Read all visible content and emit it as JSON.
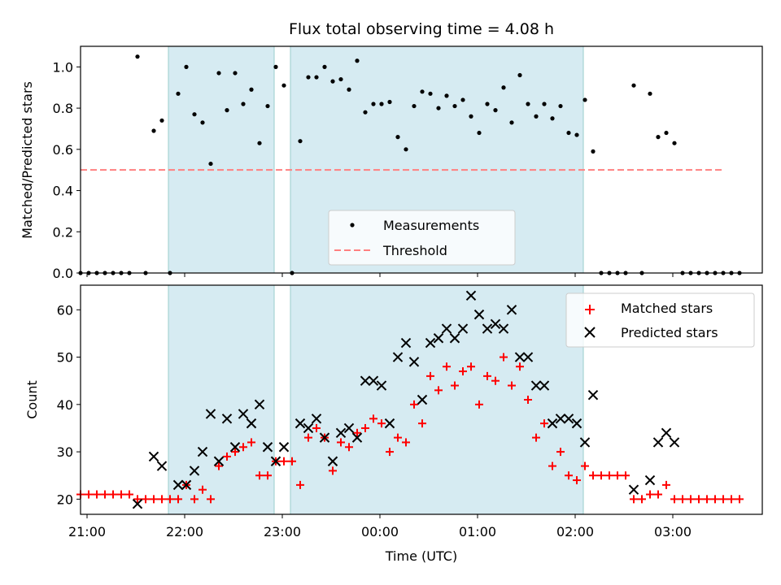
{
  "chart_data": [
    {
      "type": "scatter",
      "title": "Flux total observing time = 4.08 h",
      "ylabel": "Matched/Predicted stars",
      "xlabel": "",
      "ylim": [
        0,
        1.1
      ],
      "xlim": [
        "20:56",
        "03:55"
      ],
      "yticks": [
        0.0,
        0.2,
        0.4,
        0.6,
        0.8,
        1.0
      ],
      "ytick_labels": [
        "0.0",
        "0.2",
        "0.4",
        "0.6",
        "0.8",
        "1.0"
      ],
      "observing_windows": [
        [
          "21:50",
          "22:55"
        ],
        [
          "23:05",
          "02:05"
        ]
      ],
      "threshold": {
        "value": 0.5,
        "x_range": [
          "20:56",
          "03:30"
        ],
        "color": "#ff8080"
      },
      "legend": {
        "position": "lower center",
        "entries": [
          "Measurements",
          "Threshold"
        ]
      },
      "series": [
        {
          "name": "Measurements",
          "color": "#000000",
          "marker": "dot",
          "points": [
            [
              "20:56",
              0.0
            ],
            [
              "21:01",
              0.0
            ],
            [
              "21:06",
              0.0
            ],
            [
              "21:11",
              0.0
            ],
            [
              "21:16",
              0.0
            ],
            [
              "21:21",
              0.0
            ],
            [
              "21:26",
              0.0
            ],
            [
              "21:31",
              1.05
            ],
            [
              "21:36",
              0.0
            ],
            [
              "21:41",
              0.69
            ],
            [
              "21:46",
              0.74
            ],
            [
              "21:51",
              0.0
            ],
            [
              "21:56",
              0.87
            ],
            [
              "22:01",
              1.0
            ],
            [
              "22:06",
              0.77
            ],
            [
              "22:11",
              0.73
            ],
            [
              "22:16",
              0.53
            ],
            [
              "22:21",
              0.97
            ],
            [
              "22:26",
              0.79
            ],
            [
              "22:31",
              0.97
            ],
            [
              "22:36",
              0.82
            ],
            [
              "22:41",
              0.89
            ],
            [
              "22:46",
              0.63
            ],
            [
              "22:51",
              0.81
            ],
            [
              "22:56",
              1.0
            ],
            [
              "23:01",
              0.91
            ],
            [
              "23:06",
              0.0
            ],
            [
              "23:11",
              0.64
            ],
            [
              "23:16",
              0.95
            ],
            [
              "23:21",
              0.95
            ],
            [
              "23:26",
              1.0
            ],
            [
              "23:31",
              0.93
            ],
            [
              "23:36",
              0.94
            ],
            [
              "23:41",
              0.89
            ],
            [
              "23:46",
              1.03
            ],
            [
              "23:51",
              0.78
            ],
            [
              "23:56",
              0.82
            ],
            [
              "00:01",
              0.82
            ],
            [
              "00:06",
              0.83
            ],
            [
              "00:11",
              0.66
            ],
            [
              "00:16",
              0.6
            ],
            [
              "00:21",
              0.81
            ],
            [
              "00:26",
              0.88
            ],
            [
              "00:31",
              0.87
            ],
            [
              "00:36",
              0.8
            ],
            [
              "00:41",
              0.86
            ],
            [
              "00:46",
              0.81
            ],
            [
              "00:51",
              0.84
            ],
            [
              "00:56",
              0.76
            ],
            [
              "01:01",
              0.68
            ],
            [
              "01:06",
              0.82
            ],
            [
              "01:11",
              0.79
            ],
            [
              "01:16",
              0.9
            ],
            [
              "01:21",
              0.73
            ],
            [
              "01:26",
              0.96
            ],
            [
              "01:31",
              0.82
            ],
            [
              "01:36",
              0.76
            ],
            [
              "01:41",
              0.82
            ],
            [
              "01:46",
              0.75
            ],
            [
              "01:51",
              0.81
            ],
            [
              "01:56",
              0.68
            ],
            [
              "02:01",
              0.67
            ],
            [
              "02:06",
              0.84
            ],
            [
              "02:11",
              0.59
            ],
            [
              "02:16",
              0.0
            ],
            [
              "02:21",
              0.0
            ],
            [
              "02:26",
              0.0
            ],
            [
              "02:31",
              0.0
            ],
            [
              "02:36",
              0.91
            ],
            [
              "02:41",
              0.0
            ],
            [
              "02:46",
              0.87
            ],
            [
              "02:51",
              0.66
            ],
            [
              "02:56",
              0.68
            ],
            [
              "03:01",
              0.63
            ],
            [
              "03:06",
              0.0
            ],
            [
              "03:11",
              0.0
            ],
            [
              "03:16",
              0.0
            ],
            [
              "03:21",
              0.0
            ],
            [
              "03:26",
              0.0
            ],
            [
              "03:31",
              0.0
            ],
            [
              "03:36",
              0.0
            ],
            [
              "03:41",
              0.0
            ]
          ]
        }
      ]
    },
    {
      "type": "scatter",
      "title": "",
      "xlabel": "Time (UTC)",
      "ylabel": "Count",
      "ylim": [
        16.8,
        65.2
      ],
      "xlim": [
        "20:56",
        "03:55"
      ],
      "yticks": [
        20,
        30,
        40,
        50,
        60
      ],
      "ytick_labels": [
        "20",
        "30",
        "40",
        "50",
        "60"
      ],
      "xticks": [
        "21:00",
        "22:00",
        "23:00",
        "00:00",
        "01:00",
        "02:00",
        "03:00"
      ],
      "observing_windows": [
        [
          "21:50",
          "22:55"
        ],
        [
          "23:05",
          "02:05"
        ]
      ],
      "legend": {
        "position": "upper right",
        "entries": [
          "Matched stars",
          "Predicted stars"
        ]
      },
      "series": [
        {
          "name": "Matched stars",
          "color": "#ff0000",
          "marker": "plus",
          "points": [
            [
              "20:56",
              21
            ],
            [
              "21:01",
              21
            ],
            [
              "21:06",
              21
            ],
            [
              "21:11",
              21
            ],
            [
              "21:16",
              21
            ],
            [
              "21:21",
              21
            ],
            [
              "21:26",
              21
            ],
            [
              "21:31",
              20
            ],
            [
              "21:36",
              20
            ],
            [
              "21:41",
              20
            ],
            [
              "21:46",
              20
            ],
            [
              "21:51",
              20
            ],
            [
              "21:56",
              20
            ],
            [
              "22:01",
              23
            ],
            [
              "22:06",
              20
            ],
            [
              "22:11",
              22
            ],
            [
              "22:16",
              20
            ],
            [
              "22:21",
              27
            ],
            [
              "22:26",
              29
            ],
            [
              "22:31",
              30
            ],
            [
              "22:36",
              31
            ],
            [
              "22:41",
              32
            ],
            [
              "22:46",
              25
            ],
            [
              "22:51",
              25
            ],
            [
              "22:56",
              28
            ],
            [
              "23:01",
              28
            ],
            [
              "23:06",
              28
            ],
            [
              "23:11",
              23
            ],
            [
              "23:16",
              33
            ],
            [
              "23:21",
              35
            ],
            [
              "23:26",
              33
            ],
            [
              "23:31",
              26
            ],
            [
              "23:36",
              32
            ],
            [
              "23:41",
              31
            ],
            [
              "23:46",
              34
            ],
            [
              "23:51",
              35
            ],
            [
              "23:56",
              37
            ],
            [
              "00:01",
              36
            ],
            [
              "00:06",
              30
            ],
            [
              "00:11",
              33
            ],
            [
              "00:16",
              32
            ],
            [
              "00:21",
              40
            ],
            [
              "00:26",
              36
            ],
            [
              "00:31",
              46
            ],
            [
              "00:36",
              43
            ],
            [
              "00:41",
              48
            ],
            [
              "00:46",
              44
            ],
            [
              "00:51",
              47
            ],
            [
              "00:56",
              48
            ],
            [
              "01:01",
              40
            ],
            [
              "01:06",
              46
            ],
            [
              "01:11",
              45
            ],
            [
              "01:16",
              50
            ],
            [
              "01:21",
              44
            ],
            [
              "01:26",
              48
            ],
            [
              "01:31",
              41
            ],
            [
              "01:36",
              33
            ],
            [
              "01:41",
              36
            ],
            [
              "01:46",
              27
            ],
            [
              "01:51",
              30
            ],
            [
              "01:56",
              25
            ],
            [
              "02:01",
              24
            ],
            [
              "02:06",
              27
            ],
            [
              "02:11",
              25
            ],
            [
              "02:16",
              25
            ],
            [
              "02:21",
              25
            ],
            [
              "02:26",
              25
            ],
            [
              "02:31",
              25
            ],
            [
              "02:36",
              20
            ],
            [
              "02:41",
              20
            ],
            [
              "02:46",
              21
            ],
            [
              "02:51",
              21
            ],
            [
              "02:56",
              23
            ],
            [
              "03:01",
              20
            ],
            [
              "03:06",
              20
            ],
            [
              "03:11",
              20
            ],
            [
              "03:16",
              20
            ],
            [
              "03:21",
              20
            ],
            [
              "03:26",
              20
            ],
            [
              "03:31",
              20
            ],
            [
              "03:36",
              20
            ],
            [
              "03:41",
              20
            ]
          ]
        },
        {
          "name": "Predicted stars",
          "color": "#000000",
          "marker": "x",
          "points": [
            [
              "21:31",
              19
            ],
            [
              "21:41",
              29
            ],
            [
              "21:46",
              27
            ],
            [
              "21:56",
              23
            ],
            [
              "22:01",
              23
            ],
            [
              "22:06",
              26
            ],
            [
              "22:11",
              30
            ],
            [
              "22:16",
              38
            ],
            [
              "22:21",
              28
            ],
            [
              "22:26",
              37
            ],
            [
              "22:31",
              31
            ],
            [
              "22:36",
              38
            ],
            [
              "22:41",
              36
            ],
            [
              "22:46",
              40
            ],
            [
              "22:51",
              31
            ],
            [
              "22:56",
              28
            ],
            [
              "23:01",
              31
            ],
            [
              "23:11",
              36
            ],
            [
              "23:16",
              35
            ],
            [
              "23:21",
              37
            ],
            [
              "23:26",
              33
            ],
            [
              "23:31",
              28
            ],
            [
              "23:36",
              34
            ],
            [
              "23:41",
              35
            ],
            [
              "23:46",
              33
            ],
            [
              "23:51",
              45
            ],
            [
              "23:56",
              45
            ],
            [
              "00:01",
              44
            ],
            [
              "00:06",
              36
            ],
            [
              "00:11",
              50
            ],
            [
              "00:16",
              53
            ],
            [
              "00:21",
              49
            ],
            [
              "00:26",
              41
            ],
            [
              "00:31",
              53
            ],
            [
              "00:36",
              54
            ],
            [
              "00:41",
              56
            ],
            [
              "00:46",
              54
            ],
            [
              "00:51",
              56
            ],
            [
              "00:56",
              63
            ],
            [
              "01:01",
              59
            ],
            [
              "01:06",
              56
            ],
            [
              "01:11",
              57
            ],
            [
              "01:16",
              56
            ],
            [
              "01:21",
              60
            ],
            [
              "01:26",
              50
            ],
            [
              "01:31",
              50
            ],
            [
              "01:36",
              44
            ],
            [
              "01:41",
              44
            ],
            [
              "01:46",
              36
            ],
            [
              "01:51",
              37
            ],
            [
              "01:56",
              37
            ],
            [
              "02:01",
              36
            ],
            [
              "02:06",
              32
            ],
            [
              "02:11",
              42
            ],
            [
              "02:36",
              22
            ],
            [
              "02:46",
              24
            ],
            [
              "02:51",
              32
            ],
            [
              "02:56",
              34
            ],
            [
              "03:01",
              32
            ]
          ]
        }
      ]
    }
  ]
}
